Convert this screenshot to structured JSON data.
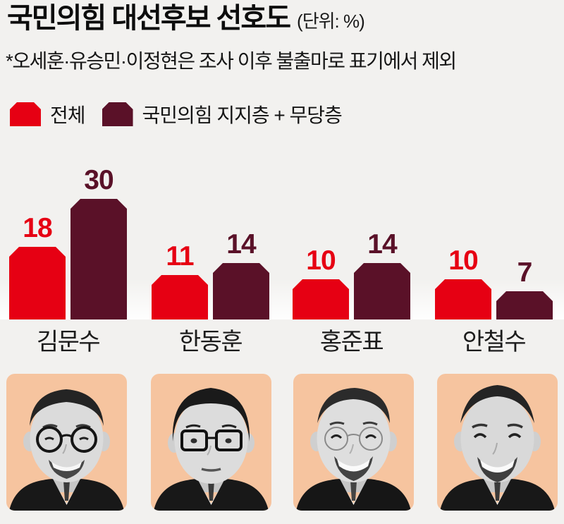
{
  "header": {
    "title": "국민의힘 대선후보 선호도",
    "unit": "(단위: %)",
    "note": "*오세훈·유승민·이정현은 조사 이후 불출마로 표기에서 제외"
  },
  "legend": {
    "items": [
      {
        "label": "전체",
        "color": "#e60013"
      },
      {
        "label": "국민의힘 지지층 + 무당층",
        "color": "#5a1128"
      }
    ]
  },
  "chart_data": {
    "type": "bar",
    "unit": "%",
    "categories": [
      "김문수",
      "한동훈",
      "홍준표",
      "안철수"
    ],
    "series": [
      {
        "name": "전체",
        "color": "#e60013",
        "values": [
          18,
          11,
          10,
          10
        ]
      },
      {
        "name": "국민의힘 지지층 + 무당층",
        "color": "#5a1128",
        "values": [
          30,
          14,
          14,
          7
        ]
      }
    ],
    "ylim": [
      0,
      30
    ],
    "grid": false,
    "value_labels": true,
    "legend_position": "top-left",
    "bar_corner_style": "chamfered-top"
  },
  "photos": {
    "bg_color": "#f6c49f",
    "items": [
      {
        "candidate": "김문수",
        "icon": "portrait-kim-moon-soo"
      },
      {
        "candidate": "한동훈",
        "icon": "portrait-han-dong-hoon"
      },
      {
        "candidate": "홍준표",
        "icon": "portrait-hong-jun-pyo"
      },
      {
        "candidate": "안철수",
        "icon": "portrait-ahn-cheol-soo"
      }
    ]
  },
  "colors": {
    "background": "#f2f1ef",
    "text": "#141414",
    "series_all": "#e60013",
    "series_ppp_plus_independents": "#5a1128",
    "photo_bg": "#f6c49f"
  }
}
